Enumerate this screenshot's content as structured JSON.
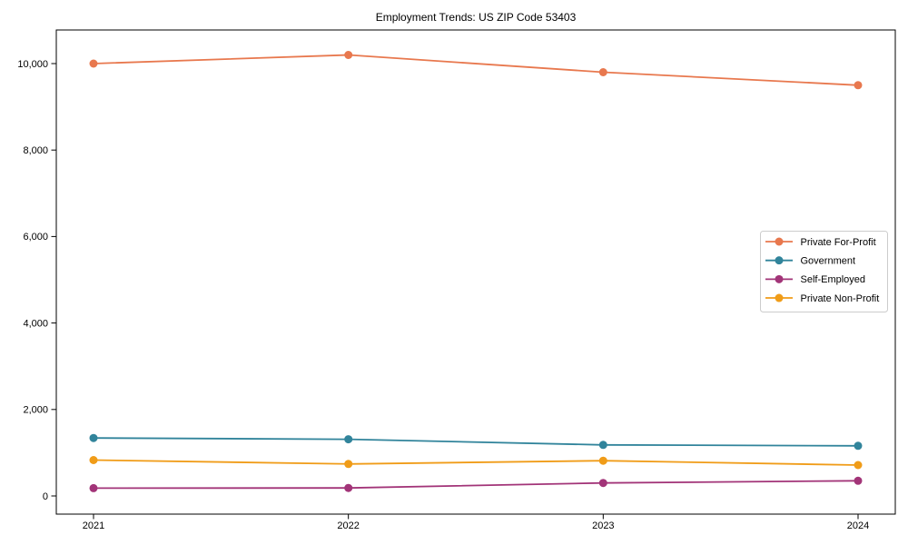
{
  "chart_data": {
    "type": "line",
    "title": "Employment Trends: US ZIP Code 53403",
    "categories": [
      "2021",
      "2022",
      "2023",
      "2024"
    ],
    "series": [
      {
        "name": "Private For-Profit",
        "color": "#E8784E",
        "values": [
          10000,
          10200,
          9800,
          9500
        ]
      },
      {
        "name": "Government",
        "color": "#31849B",
        "values": [
          1340,
          1310,
          1180,
          1160
        ]
      },
      {
        "name": "Self-Employed",
        "color": "#A23478",
        "values": [
          180,
          185,
          300,
          350
        ]
      },
      {
        "name": "Private Non-Profit",
        "color": "#F09C18",
        "values": [
          830,
          740,
          815,
          715
        ]
      }
    ],
    "xlabel": "",
    "ylabel": "",
    "ylim": [
      -420,
      10777
    ],
    "yticks": [
      0,
      2000,
      4000,
      6000,
      8000,
      10000
    ],
    "ytick_labels": [
      "0",
      "2,000",
      "4,000",
      "6,000",
      "8,000",
      "10,000"
    ],
    "legend_position": "center right",
    "grid": false,
    "marker": "circle",
    "frame_color": "#000000",
    "legend_border_color": "#cccccc",
    "background_color": "#ffffff"
  }
}
